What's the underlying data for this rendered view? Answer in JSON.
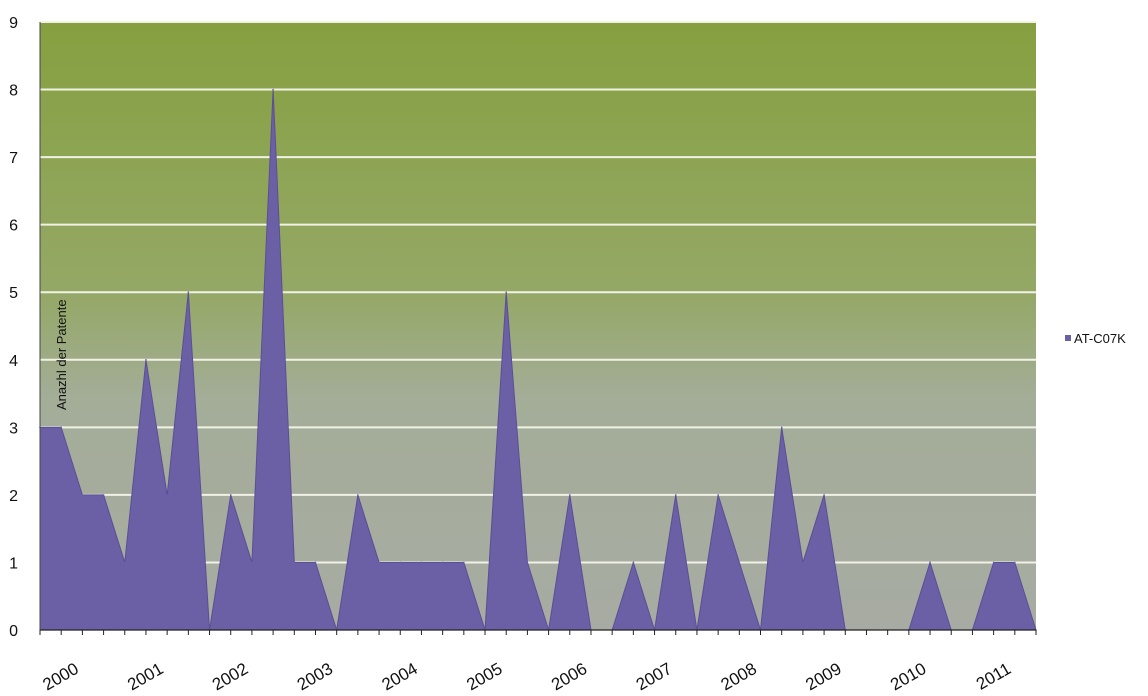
{
  "chart_data": {
    "type": "area",
    "title": "",
    "ylabel": "Anazhl der Patente",
    "xlabel": "",
    "ylim": [
      0,
      9
    ],
    "yticks": [
      0,
      1,
      2,
      3,
      4,
      5,
      6,
      7,
      8,
      9
    ],
    "year_labels": [
      "2000",
      "2001",
      "2002",
      "2003",
      "2004",
      "2005",
      "2006",
      "2007",
      "2008",
      "2009",
      "2010",
      "2011"
    ],
    "periods_per_year": 4,
    "grid": true,
    "legend_position": "right",
    "series": [
      {
        "name": "AT-C07K",
        "color": "#6b5fa6",
        "values": [
          3,
          3,
          2,
          2,
          1,
          4,
          2,
          5,
          0,
          2,
          1,
          8,
          1,
          1,
          0,
          2,
          1,
          1,
          1,
          1,
          1,
          0,
          5,
          1,
          0,
          2,
          0,
          0,
          1,
          0,
          2,
          0,
          2,
          1,
          0,
          3,
          1,
          2,
          0,
          0,
          0,
          0,
          1,
          0,
          0,
          1,
          1,
          0
        ]
      }
    ]
  }
}
